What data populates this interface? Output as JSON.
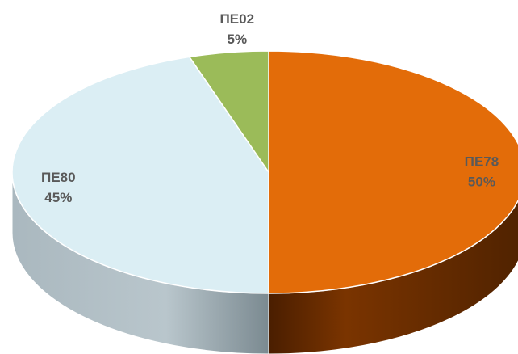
{
  "chart_data": {
    "type": "pie",
    "categories": [
      "ΠΕ78",
      "ΠΕ80",
      "ΠΕ02"
    ],
    "values": [
      50,
      45,
      5
    ],
    "value_labels": [
      "50%",
      "45%",
      "5%"
    ],
    "colors": [
      "#e36c09",
      "#dbeef4",
      "#9bbb59"
    ]
  }
}
